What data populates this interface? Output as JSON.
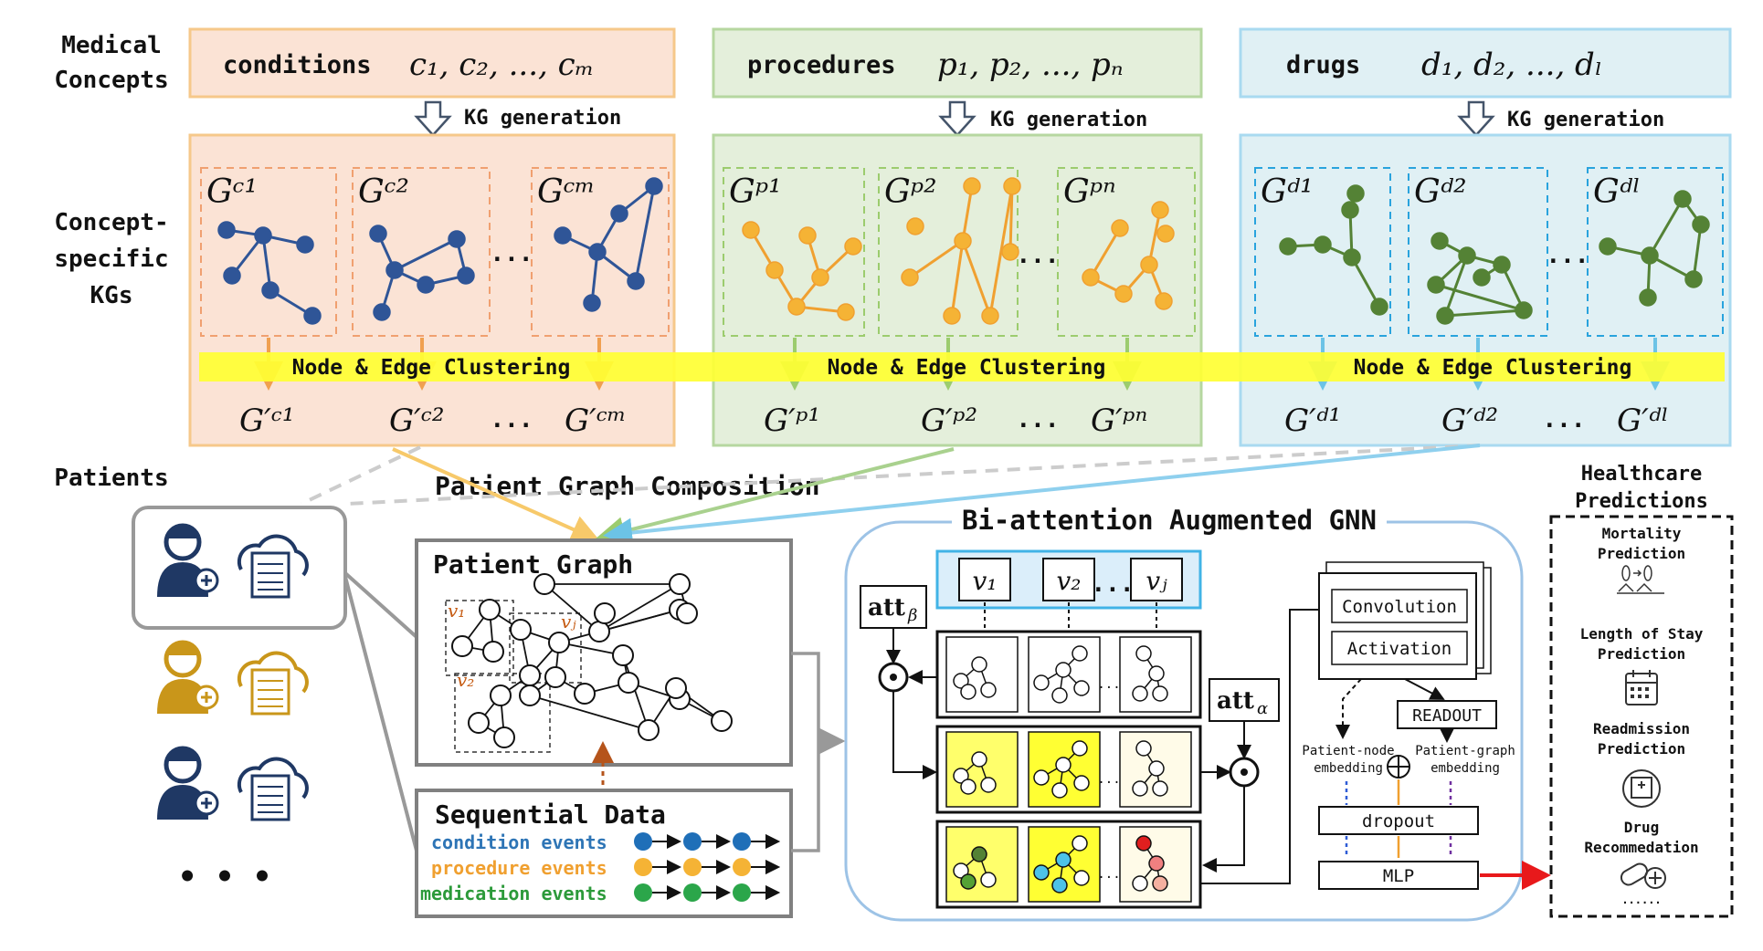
{
  "left_labels": {
    "medical_concepts": [
      "Medical",
      "Concepts"
    ],
    "concept_kgs": [
      "Concept-",
      "specific",
      "KGs"
    ],
    "patients": "Patients"
  },
  "concepts": [
    {
      "name": "conditions",
      "symbols": "c₁, c₂, ..., cₘ",
      "kg_gen": "KG generation",
      "graphs": [
        "Gᶜ¹",
        "Gᶜ²",
        "Gᶜᵐ"
      ],
      "clustered": [
        "G′ᶜ¹",
        "G′ᶜ²",
        "G′ᶜᵐ"
      ]
    },
    {
      "name": "procedures",
      "symbols": "p₁, p₂, ..., pₙ",
      "kg_gen": "KG generation",
      "graphs": [
        "Gᵖ¹",
        "Gᵖ²",
        "Gᵖⁿ"
      ],
      "clustered": [
        "G′ᵖ¹",
        "G′ᵖ²",
        "G′ᵖⁿ"
      ]
    },
    {
      "name": "drugs",
      "symbols": "d₁, d₂, ..., dₗ",
      "kg_gen": "KG generation",
      "graphs": [
        "Gᵈ¹",
        "Gᵈ²",
        "Gᵈˡ"
      ],
      "clustered": [
        "G′ᵈ¹",
        "G′ᵈ²",
        "G′ᵈˡ"
      ]
    }
  ],
  "ellipsis": "...",
  "clustering_label": "Node & Edge Clustering",
  "patient_graph_composition": "Patient Graph Composition",
  "patient_graph": {
    "title": "Patient Graph",
    "v1": "v₁",
    "v2": "v₂",
    "vj": "vⱼ"
  },
  "sequential": {
    "title": "Sequential Data",
    "events": [
      "condition events",
      "procedure events",
      "medication events"
    ]
  },
  "gnn": {
    "title": "Bi-attention Augmented GNN",
    "nodes": [
      "v₁",
      "v₂",
      "vⱼ"
    ],
    "att_beta": "att",
    "att_beta_sub": "β",
    "att_alpha": "att",
    "att_alpha_sub": "α",
    "convolution": "Convolution",
    "activation": "Activation",
    "readout": "READOUT",
    "node_emb": [
      "Patient-node",
      "embedding"
    ],
    "graph_emb": [
      "Patient-graph",
      "embedding"
    ],
    "dropout": "dropout",
    "mlp": "MLP"
  },
  "predictions": {
    "title": [
      "Healthcare",
      "Predictions"
    ],
    "items": [
      [
        "Mortality",
        "Prediction"
      ],
      [
        "Length of Stay",
        "Prediction"
      ],
      [
        "Readmission",
        "Prediction"
      ],
      [
        "Drug",
        "Recommedation"
      ]
    ],
    "more": "......"
  },
  "patients_more": "• • •",
  "colors": {
    "conditions_bg": "#fbe3d5",
    "conditions_border": "#f6c88a",
    "procedures_bg": "#e4efdb",
    "procedures_border": "#b6d7a0",
    "drugs_bg": "#e0f0f4",
    "drugs_border": "#a9daf0",
    "blue_node": "#2f5597",
    "orange_node": "#f5b335",
    "green_node": "#548235",
    "cluster_bar": "#ffff33",
    "patient_dark": "#1f3864",
    "patient_gold": "#c9961a",
    "red_arrow": "#e8191b"
  }
}
